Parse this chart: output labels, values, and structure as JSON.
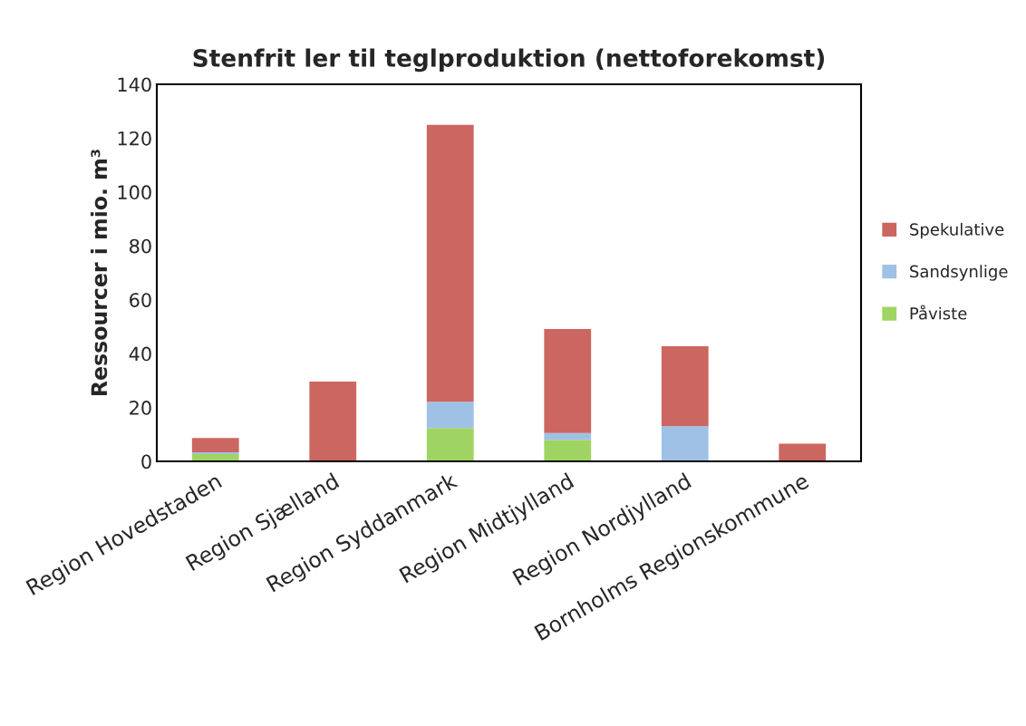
{
  "chart_data": {
    "type": "bar",
    "stacked": true,
    "title": "Stenfrit ler til teglproduktion (nettoforekomst)",
    "ylabel": "Ressourcer i mio. m³",
    "categories": [
      "Region Hovedstaden",
      "Region Sjælland",
      "Region Syddanmark",
      "Region Midtjylland",
      "Region Nordjylland",
      "Bornholms Regionskommune"
    ],
    "series": [
      {
        "name": "Påviste",
        "color": "#a0d462",
        "values": [
          2.7,
          0,
          12.4,
          8.0,
          0,
          0
        ]
      },
      {
        "name": "Sandsynlige",
        "color": "#9fc1e6",
        "values": [
          0.7,
          0,
          9.7,
          2.5,
          13.0,
          0
        ]
      },
      {
        "name": "Spekulative",
        "color": "#cc6660",
        "values": [
          5.3,
          29.6,
          102.8,
          38.6,
          29.7,
          6.6
        ]
      }
    ],
    "ylim": [
      0,
      140
    ],
    "yticks": [
      0,
      20,
      40,
      60,
      80,
      100,
      120,
      140
    ],
    "grid": false,
    "legend": "right"
  }
}
